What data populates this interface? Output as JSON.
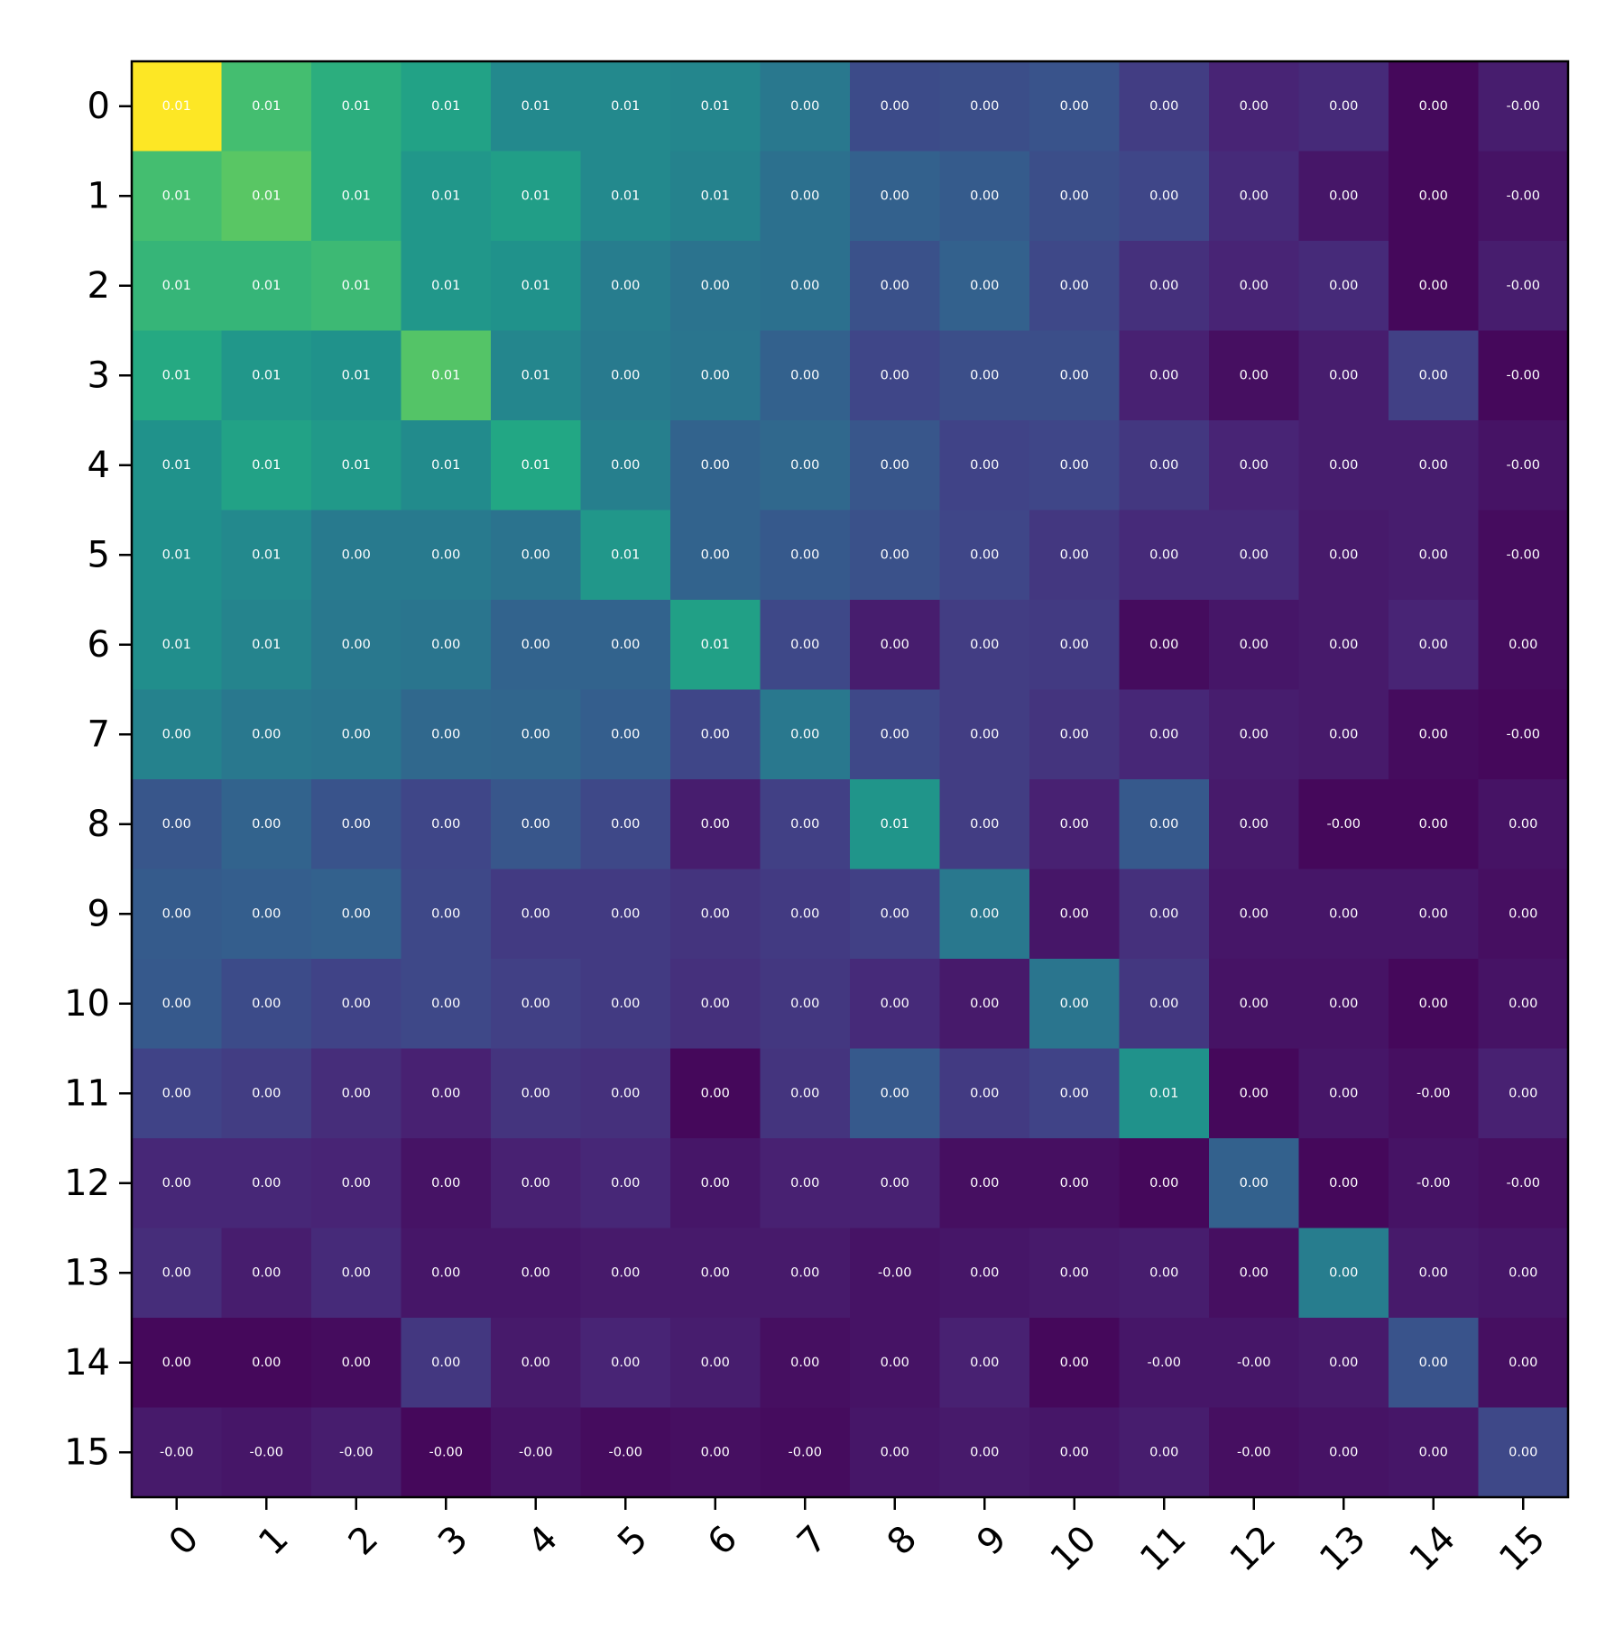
{
  "chart_data": {
    "type": "heatmap",
    "title": "",
    "xlabel": "",
    "ylabel": "",
    "colormap": "viridis",
    "x_categories": [
      "0",
      "1",
      "2",
      "3",
      "4",
      "5",
      "6",
      "7",
      "8",
      "9",
      "10",
      "11",
      "12",
      "13",
      "14",
      "15"
    ],
    "y_categories": [
      "0",
      "1",
      "2",
      "3",
      "4",
      "5",
      "6",
      "7",
      "8",
      "9",
      "10",
      "11",
      "12",
      "13",
      "14",
      "15"
    ],
    "x_tick_rotation_deg": 45,
    "cell_labels": [
      [
        "0.01",
        "0.01",
        "0.01",
        "0.01",
        "0.01",
        "0.01",
        "0.01",
        "0.00",
        "0.00",
        "0.00",
        "0.00",
        "0.00",
        "0.00",
        "0.00",
        "0.00",
        "-0.00"
      ],
      [
        "0.01",
        "0.01",
        "0.01",
        "0.01",
        "0.01",
        "0.01",
        "0.01",
        "0.00",
        "0.00",
        "0.00",
        "0.00",
        "0.00",
        "0.00",
        "0.00",
        "0.00",
        "-0.00"
      ],
      [
        "0.01",
        "0.01",
        "0.01",
        "0.01",
        "0.01",
        "0.00",
        "0.00",
        "0.00",
        "0.00",
        "0.00",
        "0.00",
        "0.00",
        "0.00",
        "0.00",
        "0.00",
        "-0.00"
      ],
      [
        "0.01",
        "0.01",
        "0.01",
        "0.01",
        "0.01",
        "0.00",
        "0.00",
        "0.00",
        "0.00",
        "0.00",
        "0.00",
        "0.00",
        "0.00",
        "0.00",
        "0.00",
        "-0.00"
      ],
      [
        "0.01",
        "0.01",
        "0.01",
        "0.01",
        "0.01",
        "0.00",
        "0.00",
        "0.00",
        "0.00",
        "0.00",
        "0.00",
        "0.00",
        "0.00",
        "0.00",
        "0.00",
        "-0.00"
      ],
      [
        "0.01",
        "0.01",
        "0.00",
        "0.00",
        "0.00",
        "0.01",
        "0.00",
        "0.00",
        "0.00",
        "0.00",
        "0.00",
        "0.00",
        "0.00",
        "0.00",
        "0.00",
        "-0.00"
      ],
      [
        "0.01",
        "0.01",
        "0.00",
        "0.00",
        "0.00",
        "0.00",
        "0.01",
        "0.00",
        "0.00",
        "0.00",
        "0.00",
        "0.00",
        "0.00",
        "0.00",
        "0.00",
        "0.00"
      ],
      [
        "0.00",
        "0.00",
        "0.00",
        "0.00",
        "0.00",
        "0.00",
        "0.00",
        "0.00",
        "0.00",
        "0.00",
        "0.00",
        "0.00",
        "0.00",
        "0.00",
        "0.00",
        "-0.00"
      ],
      [
        "0.00",
        "0.00",
        "0.00",
        "0.00",
        "0.00",
        "0.00",
        "0.00",
        "0.00",
        "0.01",
        "0.00",
        "0.00",
        "0.00",
        "0.00",
        "-0.00",
        "0.00",
        "0.00"
      ],
      [
        "0.00",
        "0.00",
        "0.00",
        "0.00",
        "0.00",
        "0.00",
        "0.00",
        "0.00",
        "0.00",
        "0.00",
        "0.00",
        "0.00",
        "0.00",
        "0.00",
        "0.00",
        "0.00"
      ],
      [
        "0.00",
        "0.00",
        "0.00",
        "0.00",
        "0.00",
        "0.00",
        "0.00",
        "0.00",
        "0.00",
        "0.00",
        "0.00",
        "0.00",
        "0.00",
        "0.00",
        "0.00",
        "0.00"
      ],
      [
        "0.00",
        "0.00",
        "0.00",
        "0.00",
        "0.00",
        "0.00",
        "0.00",
        "0.00",
        "0.00",
        "0.00",
        "0.00",
        "0.01",
        "0.00",
        "0.00",
        "-0.00",
        "0.00"
      ],
      [
        "0.00",
        "0.00",
        "0.00",
        "0.00",
        "0.00",
        "0.00",
        "0.00",
        "0.00",
        "0.00",
        "0.00",
        "0.00",
        "0.00",
        "0.00",
        "0.00",
        "-0.00",
        "-0.00"
      ],
      [
        "0.00",
        "0.00",
        "0.00",
        "0.00",
        "0.00",
        "0.00",
        "0.00",
        "0.00",
        "-0.00",
        "0.00",
        "0.00",
        "0.00",
        "0.00",
        "0.00",
        "0.00",
        "0.00"
      ],
      [
        "0.00",
        "0.00",
        "0.00",
        "0.00",
        "0.00",
        "0.00",
        "0.00",
        "0.00",
        "0.00",
        "0.00",
        "0.00",
        "-0.00",
        "-0.00",
        "0.00",
        "0.00",
        "0.00"
      ],
      [
        "-0.00",
        "-0.00",
        "-0.00",
        "-0.00",
        "-0.00",
        "-0.00",
        "0.00",
        "-0.00",
        "0.00",
        "0.00",
        "0.00",
        "0.00",
        "-0.00",
        "0.00",
        "0.00",
        "0.00"
      ]
    ],
    "relative_intensity": [
      [
        1.0,
        0.7,
        0.63,
        0.58,
        0.47,
        0.47,
        0.46,
        0.4,
        0.23,
        0.24,
        0.26,
        0.18,
        0.1,
        0.12,
        0.02,
        0.08
      ],
      [
        0.7,
        0.74,
        0.63,
        0.53,
        0.56,
        0.47,
        0.44,
        0.37,
        0.31,
        0.29,
        0.24,
        0.21,
        0.12,
        0.06,
        0.02,
        0.05
      ],
      [
        0.66,
        0.66,
        0.68,
        0.53,
        0.51,
        0.42,
        0.38,
        0.37,
        0.25,
        0.31,
        0.22,
        0.14,
        0.1,
        0.12,
        0.02,
        0.08
      ],
      [
        0.61,
        0.53,
        0.51,
        0.73,
        0.46,
        0.41,
        0.39,
        0.31,
        0.21,
        0.24,
        0.24,
        0.09,
        0.04,
        0.08,
        0.19,
        0.02
      ],
      [
        0.51,
        0.58,
        0.54,
        0.48,
        0.6,
        0.43,
        0.32,
        0.34,
        0.27,
        0.2,
        0.21,
        0.16,
        0.1,
        0.08,
        0.08,
        0.05
      ],
      [
        0.5,
        0.47,
        0.41,
        0.41,
        0.38,
        0.53,
        0.32,
        0.28,
        0.25,
        0.21,
        0.16,
        0.12,
        0.12,
        0.07,
        0.08,
        0.03
      ],
      [
        0.49,
        0.45,
        0.4,
        0.39,
        0.32,
        0.32,
        0.57,
        0.22,
        0.08,
        0.18,
        0.17,
        0.03,
        0.06,
        0.07,
        0.1,
        0.03
      ],
      [
        0.44,
        0.4,
        0.39,
        0.34,
        0.33,
        0.3,
        0.21,
        0.4,
        0.22,
        0.18,
        0.15,
        0.11,
        0.08,
        0.07,
        0.03,
        0.02
      ],
      [
        0.27,
        0.32,
        0.26,
        0.21,
        0.27,
        0.22,
        0.08,
        0.19,
        0.52,
        0.18,
        0.09,
        0.28,
        0.07,
        0.02,
        0.02,
        0.05
      ],
      [
        0.29,
        0.3,
        0.31,
        0.22,
        0.17,
        0.17,
        0.15,
        0.17,
        0.19,
        0.4,
        0.06,
        0.14,
        0.06,
        0.06,
        0.06,
        0.04
      ],
      [
        0.28,
        0.23,
        0.2,
        0.22,
        0.19,
        0.17,
        0.14,
        0.16,
        0.12,
        0.07,
        0.39,
        0.16,
        0.05,
        0.05,
        0.02,
        0.05
      ],
      [
        0.2,
        0.18,
        0.13,
        0.09,
        0.15,
        0.14,
        0.02,
        0.15,
        0.28,
        0.17,
        0.2,
        0.51,
        0.02,
        0.06,
        0.04,
        0.09
      ],
      [
        0.11,
        0.11,
        0.1,
        0.05,
        0.09,
        0.11,
        0.06,
        0.09,
        0.09,
        0.04,
        0.04,
        0.02,
        0.31,
        0.02,
        0.05,
        0.04
      ],
      [
        0.13,
        0.08,
        0.12,
        0.06,
        0.06,
        0.07,
        0.07,
        0.07,
        0.05,
        0.06,
        0.07,
        0.08,
        0.04,
        0.42,
        0.07,
        0.06
      ],
      [
        0.02,
        0.02,
        0.03,
        0.16,
        0.07,
        0.1,
        0.08,
        0.04,
        0.05,
        0.09,
        0.02,
        0.06,
        0.06,
        0.07,
        0.26,
        0.04
      ],
      [
        0.07,
        0.06,
        0.08,
        0.02,
        0.05,
        0.03,
        0.04,
        0.03,
        0.06,
        0.07,
        0.06,
        0.08,
        0.04,
        0.05,
        0.06,
        0.22
      ]
    ]
  }
}
